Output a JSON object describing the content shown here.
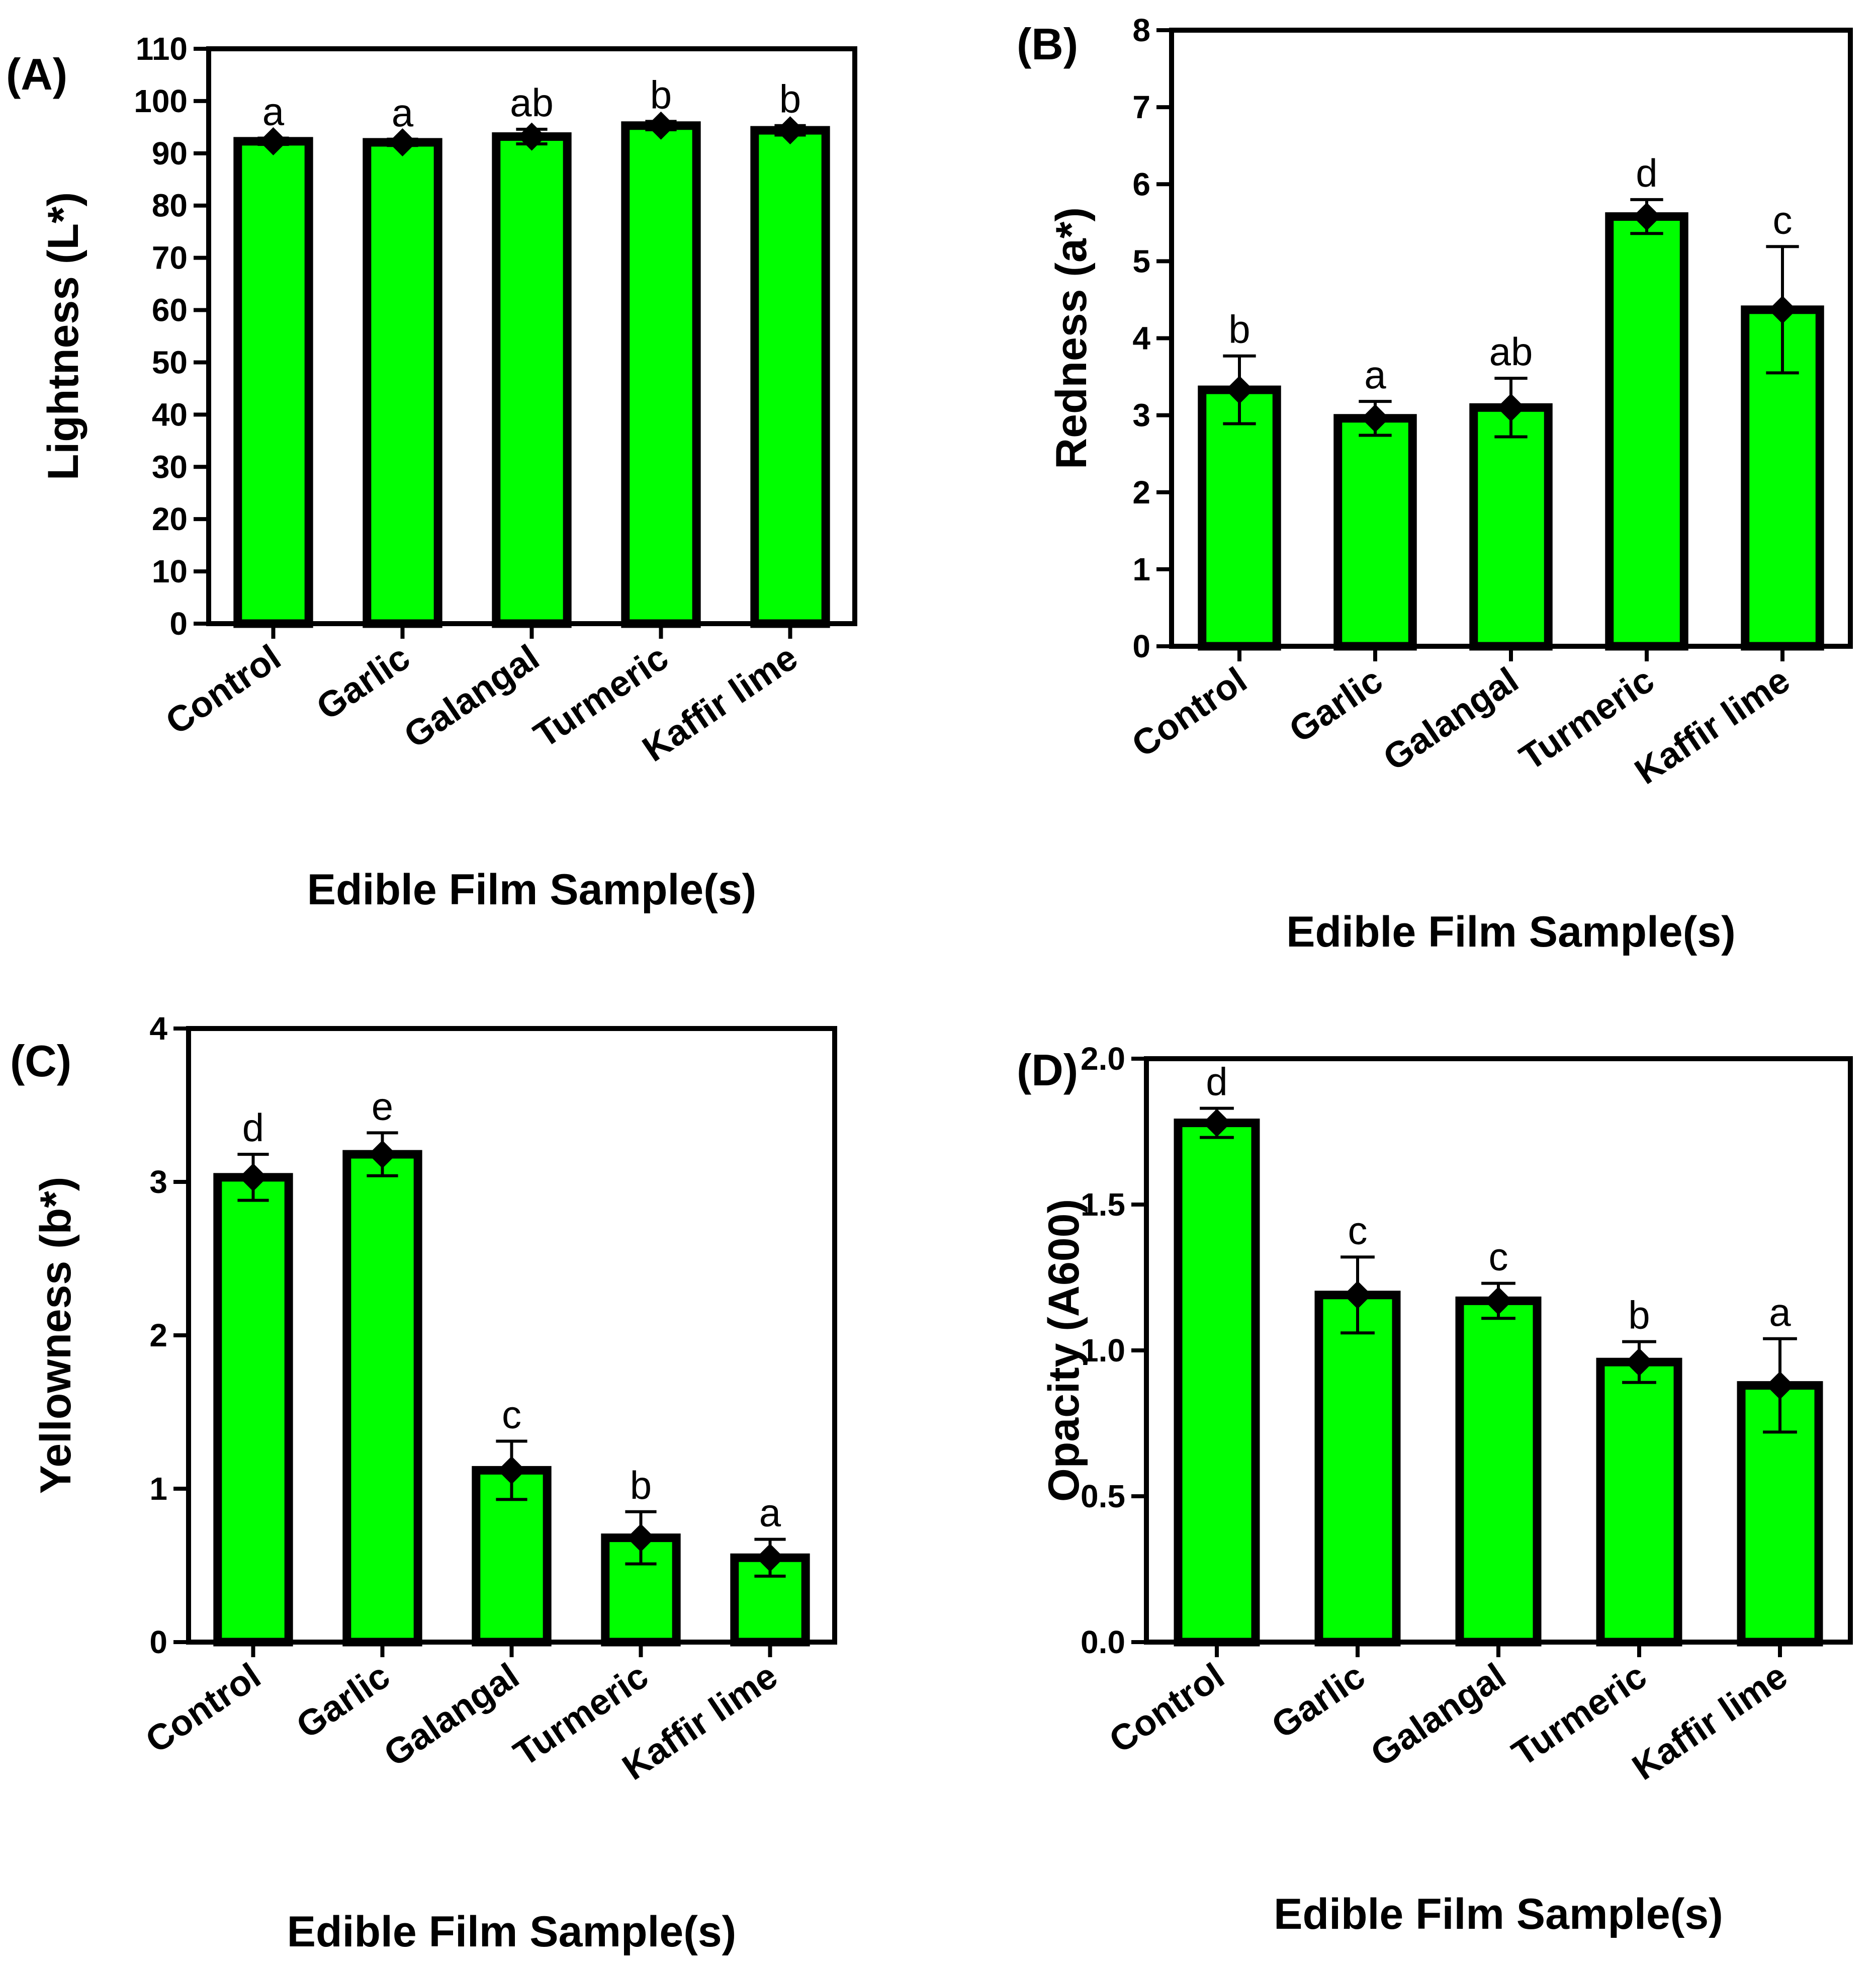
{
  "colors": {
    "bar_fill": "#00ff00",
    "bar_stroke": "#000000",
    "axis": "#000000"
  },
  "chart_data": [
    {
      "panel": "(A)",
      "type": "bar",
      "categories": [
        "Control",
        "Garlic",
        "Galangal",
        "Turmeric",
        "Kaffir lime"
      ],
      "values": [
        92.3,
        92.1,
        93.2,
        95.3,
        94.4
      ],
      "errors": [
        0.6,
        0.6,
        1.4,
        0.8,
        0.9
      ],
      "significance": [
        "a",
        "a",
        "ab",
        "b",
        "b"
      ],
      "ylabel": "Lightness (L*)",
      "xlabel": "Edible Film Sample(s)",
      "ylim": [
        0,
        110
      ],
      "yticks": [
        "0",
        "10",
        "20",
        "30",
        "40",
        "50",
        "60",
        "70",
        "80",
        "90",
        "100",
        "110"
      ]
    },
    {
      "panel": "(B)",
      "type": "bar",
      "categories": [
        "Control",
        "Garlic",
        "Galangal",
        "Turmeric",
        "Kaffir lime"
      ],
      "values": [
        3.33,
        2.96,
        3.1,
        5.58,
        4.37
      ],
      "errors": [
        0.44,
        0.22,
        0.38,
        0.22,
        0.82
      ],
      "significance": [
        "b",
        "a",
        "ab",
        "d",
        "c"
      ],
      "ylabel": "Redness (a*)",
      "xlabel": "Edible Film Sample(s)",
      "ylim": [
        0,
        8
      ],
      "yticks": [
        "0",
        "1",
        "2",
        "3",
        "4",
        "5",
        "6",
        "7",
        "8"
      ]
    },
    {
      "panel": "(C)",
      "type": "bar",
      "categories": [
        "Control",
        "Garlic",
        "Galangal",
        "Turmeric",
        "Kaffir lime"
      ],
      "values": [
        3.03,
        3.18,
        1.12,
        0.68,
        0.55
      ],
      "errors": [
        0.15,
        0.14,
        0.19,
        0.17,
        0.12
      ],
      "significance": [
        "d",
        "e",
        "c",
        "b",
        "a"
      ],
      "ylabel": "Yellowness (b*)",
      "xlabel": "Edible Film Sample(s)",
      "ylim": [
        0,
        4
      ],
      "yticks": [
        "0",
        "1",
        "2",
        "3",
        "4"
      ]
    },
    {
      "panel": "(D)",
      "type": "bar",
      "categories": [
        "Control",
        "Garlic",
        "Galangal",
        "Turmeric",
        "Kaffir lime"
      ],
      "values": [
        1.78,
        1.19,
        1.17,
        0.96,
        0.88
      ],
      "errors": [
        0.05,
        0.13,
        0.06,
        0.07,
        0.16
      ],
      "significance": [
        "d",
        "c",
        "c",
        "b",
        "a"
      ],
      "ylabel": "Opacity (A600)",
      "xlabel": "Edible Film Sample(s)",
      "ylim": [
        0,
        2.0
      ],
      "yticks": [
        "0.0",
        "0.5",
        "1.0",
        "1.5",
        "2.0"
      ]
    }
  ]
}
